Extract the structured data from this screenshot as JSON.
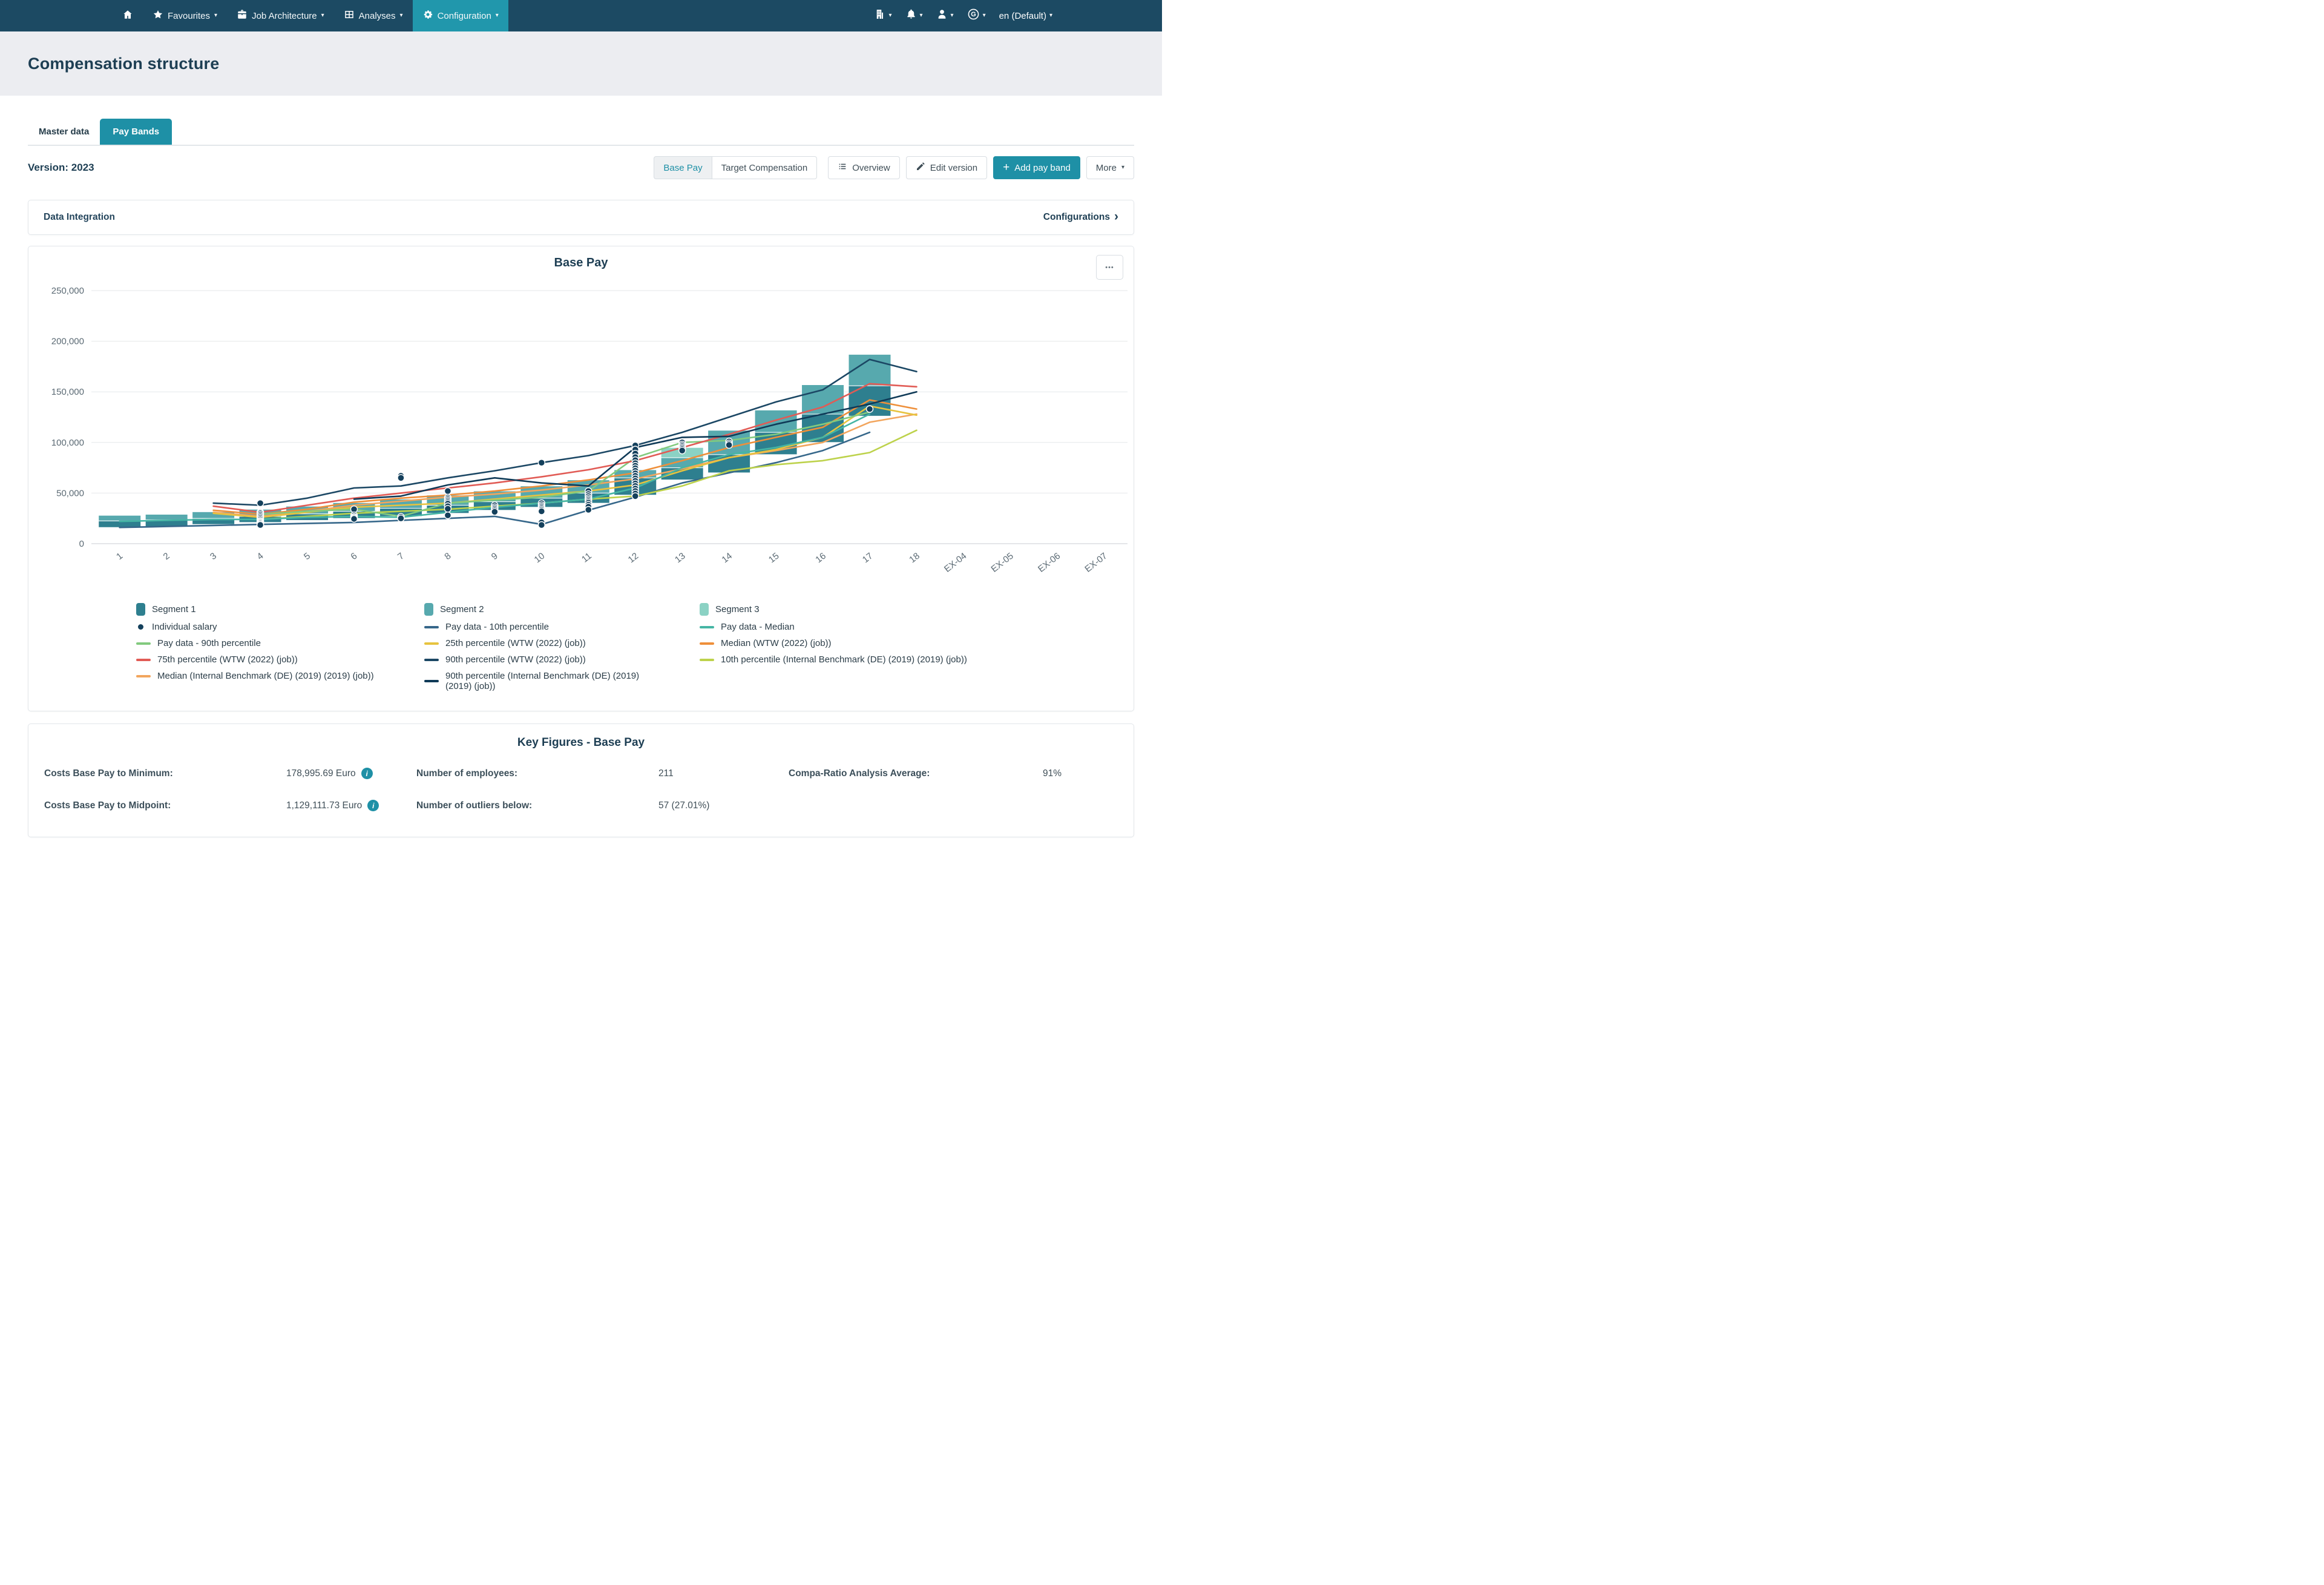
{
  "icons": {
    "caret": "▾",
    "chevron_right": "›",
    "ellipsis": "•••",
    "plus": "+",
    "info": "i"
  },
  "nav": {
    "items": [
      {
        "label": "Favourites"
      },
      {
        "label": "Job Architecture"
      },
      {
        "label": "Analyses"
      },
      {
        "label": "Configuration"
      }
    ],
    "language": "en (Default)"
  },
  "header": {
    "title": "Compensation structure"
  },
  "tabs": {
    "master": "Master data",
    "paybands": "Pay Bands"
  },
  "toolbar": {
    "version_label": "Version: 2023",
    "base_pay": "Base Pay",
    "target_comp": "Target Compensation",
    "overview": "Overview",
    "edit_version": "Edit version",
    "add_pay_band": "Add pay band",
    "more": "More"
  },
  "integration": {
    "title": "Data Integration",
    "link": "Configurations"
  },
  "chart_data": {
    "type": "combo-range-bar-line-scatter",
    "title": "Base Pay",
    "xlabel": "",
    "ylabel": "",
    "y_ticks": [
      0,
      50000,
      100000,
      150000,
      200000,
      250000
    ],
    "ylim": [
      0,
      250000
    ],
    "grid": true,
    "legend_position": "bottom",
    "categories": [
      "1",
      "2",
      "3",
      "4",
      "5",
      "6",
      "7",
      "8",
      "9",
      "10",
      "11",
      "12",
      "13",
      "14",
      "15",
      "16",
      "17",
      "18",
      "EX-04",
      "EX-05",
      "EX-06",
      "EX-07"
    ],
    "colors": {
      "seg1": "#2e7f8f",
      "seg2": "#57a9ae",
      "seg3": "#8bd2c4",
      "dot": "#14405c",
      "grid": "#e4e7ea",
      "axis": "#c9ced3",
      "tick": "#5b6a74"
    },
    "bands": [
      {
        "grade": "1",
        "stops": [
          16000,
          22500,
          28000
        ],
        "segments": [
          "seg1",
          "seg2"
        ]
      },
      {
        "grade": "2",
        "stops": [
          17000,
          23500,
          29000
        ],
        "segments": [
          "seg1",
          "seg2"
        ]
      },
      {
        "grade": "3",
        "stops": [
          19000,
          25000,
          31500
        ],
        "segments": [
          "seg1",
          "seg2"
        ]
      },
      {
        "grade": "4",
        "stops": [
          21000,
          27000,
          34000
        ],
        "segments": [
          "seg1",
          "seg2"
        ]
      },
      {
        "grade": "5",
        "stops": [
          23000,
          29500,
          37000
        ],
        "segments": [
          "seg1",
          "seg2"
        ]
      },
      {
        "grade": "6",
        "stops": [
          25000,
          32000,
          40500
        ],
        "segments": [
          "seg1",
          "seg2"
        ]
      },
      {
        "grade": "7",
        "stops": [
          27000,
          35000,
          44000
        ],
        "segments": [
          "seg1",
          "seg2"
        ]
      },
      {
        "grade": "8",
        "stops": [
          30000,
          38000,
          48000
        ],
        "segments": [
          "seg1",
          "seg2"
        ]
      },
      {
        "grade": "9",
        "stops": [
          33000,
          41500,
          52000
        ],
        "segments": [
          "seg1",
          "seg2"
        ]
      },
      {
        "grade": "10",
        "stops": [
          36000,
          45000,
          57000
        ],
        "segments": [
          "seg1",
          "seg2"
        ]
      },
      {
        "grade": "11",
        "stops": [
          40000,
          50000,
          63000
        ],
        "segments": [
          "seg1",
          "seg2"
        ]
      },
      {
        "grade": "12",
        "stops": [
          48000,
          65000,
          73000
        ],
        "segments": [
          "seg1",
          "seg2"
        ]
      },
      {
        "grade": "13",
        "stops": [
          63000,
          75000,
          85000,
          95000
        ],
        "segments": [
          "seg1",
          "seg2",
          "seg3"
        ]
      },
      {
        "grade": "14",
        "stops": [
          70000,
          88000,
          112000
        ],
        "segments": [
          "seg1",
          "seg2"
        ]
      },
      {
        "grade": "15",
        "stops": [
          88000,
          110000,
          132000
        ],
        "segments": [
          "seg1",
          "seg2"
        ]
      },
      {
        "grade": "16",
        "stops": [
          100000,
          128000,
          157000
        ],
        "segments": [
          "seg1",
          "seg2"
        ]
      },
      {
        "grade": "17",
        "stops": [
          126000,
          156000,
          187000
        ],
        "segments": [
          "seg1",
          "seg2"
        ]
      }
    ],
    "series": [
      {
        "key": "pay-data-10th",
        "name": "Pay data - 10th percentile",
        "color": "#36678a",
        "values": [
          16000,
          17000,
          18000,
          19000,
          20000,
          21000,
          23000,
          25000,
          27000,
          19000,
          33000,
          46000,
          60000,
          70000,
          80000,
          92000,
          110000,
          null
        ]
      },
      {
        "key": "internal-10th",
        "name": "10th percentile (Internal Benchmark (DE) (2019) (2019) (job))",
        "color": "#bdd24b",
        "values": [
          null,
          null,
          null,
          24000,
          27000,
          30000,
          32000,
          34000,
          37000,
          40000,
          44000,
          47000,
          57000,
          72000,
          78000,
          82000,
          90000,
          112000
        ]
      },
      {
        "key": "internal-median",
        "name": "Median (Internal Benchmark (DE) (2019) (2019) (job))",
        "color": "#f2a55d",
        "values": [
          null,
          null,
          31000,
          27000,
          32000,
          38000,
          42000,
          46000,
          49000,
          53000,
          58000,
          64000,
          74000,
          85000,
          92000,
          100000,
          120000,
          128000
        ]
      },
      {
        "key": "wtw-25th",
        "name": "25th percentile (WTW (2022) (job))",
        "color": "#e7c33f",
        "values": [
          null,
          null,
          30000,
          26000,
          31000,
          36000,
          38000,
          40000,
          44000,
          48000,
          52000,
          58000,
          72000,
          85000,
          93000,
          105000,
          136000,
          127000
        ]
      },
      {
        "key": "wtw-median",
        "name": "Median (WTW (2022) (job))",
        "color": "#ee8f3a",
        "values": [
          null,
          null,
          33000,
          29000,
          34000,
          41000,
          45000,
          48000,
          52000,
          57000,
          63000,
          70000,
          82000,
          95000,
          105000,
          115000,
          142000,
          133000
        ]
      },
      {
        "key": "pay-data-90th",
        "name": "Pay data - 90th percentile",
        "color": "#82ca7e",
        "values": [
          null,
          null,
          null,
          29000,
          32000,
          34000,
          27000,
          40000,
          43000,
          46000,
          52000,
          85000,
          100000,
          102000,
          108000,
          118000,
          130000,
          null
        ]
      },
      {
        "key": "pay-data-median",
        "name": "Pay data - Median",
        "color": "#45b5a4",
        "values": [
          22000,
          23000,
          24000,
          24000,
          26000,
          27000,
          26000,
          31000,
          36000,
          40000,
          44000,
          55000,
          75000,
          88000,
          95000,
          105000,
          128000,
          null
        ]
      },
      {
        "key": "wtw-75th",
        "name": "75th percentile (WTW (2022) (job))",
        "color": "#e15b55",
        "values": [
          null,
          null,
          37000,
          31000,
          38000,
          45000,
          50000,
          55000,
          60000,
          66000,
          73000,
          82000,
          95000,
          108000,
          122000,
          135000,
          158000,
          155000
        ]
      },
      {
        "key": "internal-90th",
        "name": "90th percentile (Internal Benchmark (DE) (2019) (2019) (job))",
        "color": "#0f3a57",
        "values": [
          null,
          null,
          null,
          null,
          null,
          44000,
          47000,
          58000,
          65000,
          60000,
          57000,
          95000,
          105000,
          106000,
          118000,
          128000,
          138000,
          150000
        ]
      },
      {
        "key": "wtw-90th",
        "name": "90th percentile (WTW (2022) (job))",
        "color": "#1b4764",
        "values": [
          null,
          null,
          40000,
          38000,
          45000,
          55000,
          57000,
          65000,
          72000,
          80000,
          87000,
          97000,
          110000,
          125000,
          140000,
          152000,
          182000,
          170000
        ]
      }
    ],
    "individual_salaries": {
      "4": [
        40000,
        31000,
        30000,
        28500,
        27000,
        25500,
        24000,
        22500,
        21500,
        20500,
        19500,
        18500
      ],
      "6": [
        34000,
        28000,
        26500,
        25500,
        24500
      ],
      "7": [
        67000,
        65000,
        26500,
        25000
      ],
      "8": [
        52000,
        45500,
        44000,
        42500,
        41000,
        39500,
        37000,
        34500,
        28000
      ],
      "9": [
        38000,
        36000,
        34500,
        33000,
        31500
      ],
      "10": [
        80000,
        40000,
        38000,
        36500,
        35000,
        33500,
        32000,
        21000,
        18500
      ],
      "11": [
        52000,
        49000,
        47000,
        45000,
        43500,
        42000,
        40500,
        38500,
        36500,
        33500
      ],
      "12": [
        97000,
        93000,
        89000,
        85500,
        82500,
        79500,
        77000,
        74500,
        72000,
        69500,
        67000,
        64500,
        62000,
        59500,
        57000,
        54500,
        52000,
        49500,
        47000
      ],
      "13": [
        100000,
        98000,
        96500,
        95000,
        93500,
        92000
      ],
      "14": [
        101000,
        99000,
        97500
      ],
      "17": [
        133000
      ]
    },
    "legend": {
      "columns": [
        [
          {
            "type": "rect",
            "color": "#2e7f8f",
            "label": "Segment 1"
          },
          {
            "type": "dot",
            "color": "#14405c",
            "label": "Individual salary"
          },
          {
            "type": "line",
            "color": "#82ca7e",
            "label": "Pay data - 90th percentile"
          },
          {
            "type": "line",
            "color": "#e15b55",
            "label": "75th percentile (WTW (2022) (job))"
          },
          {
            "type": "line",
            "color": "#f2a55d",
            "label": "Median (Internal Benchmark (DE) (2019) (2019) (job))"
          }
        ],
        [
          {
            "type": "rect",
            "color": "#57a9ae",
            "label": "Segment 2"
          },
          {
            "type": "line",
            "color": "#36678a",
            "label": "Pay data - 10th percentile"
          },
          {
            "type": "line",
            "color": "#e7c33f",
            "label": "25th percentile (WTW (2022) (job))"
          },
          {
            "type": "line",
            "color": "#1b4764",
            "label": "90th percentile (WTW (2022) (job))"
          },
          {
            "type": "line",
            "color": "#0f3a57",
            "label": "90th percentile (Internal Benchmark (DE) (2019) (2019) (job))"
          }
        ],
        [
          {
            "type": "rect",
            "color": "#8bd2c4",
            "label": "Segment 3"
          },
          {
            "type": "line",
            "color": "#45b5a4",
            "label": "Pay data - Median"
          },
          {
            "type": "line",
            "color": "#ee8f3a",
            "label": "Median (WTW (2022) (job))"
          },
          {
            "type": "line",
            "color": "#bdd24b",
            "label": "10th percentile (Internal Benchmark (DE) (2019) (2019) (job))"
          }
        ]
      ]
    }
  },
  "key_figures": {
    "title": "Key Figures - Base Pay",
    "rows": [
      {
        "c0": "Costs Base Pay to Minimum:",
        "c1": "178,995.69 Euro",
        "c2": "Number of employees:",
        "c3": "211",
        "c4": "Compa-Ratio Analysis Average:",
        "c5": "91%"
      },
      {
        "c0": "Costs Base Pay to Midpoint:",
        "c1": "1,129,111.73 Euro",
        "c2": "Number of outliers below:",
        "c3": "57 (27.01%)",
        "c4": "",
        "c5": ""
      }
    ]
  }
}
